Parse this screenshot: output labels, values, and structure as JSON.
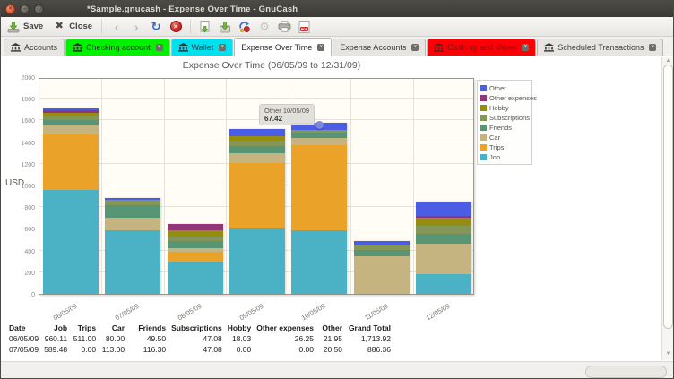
{
  "window": {
    "title": "*Sample.gnucash - Expense Over Time - GnuCash"
  },
  "toolbar": {
    "save_label": "Save",
    "close_label": "Close",
    "icons": [
      "save-icon",
      "close-icon",
      "back-icon",
      "forward-icon",
      "reload-icon",
      "stop-icon",
      "save-report-icon",
      "export-icon",
      "options-icon",
      "settings-icon",
      "print-icon",
      "export-pdf-icon"
    ]
  },
  "tabs": [
    {
      "label": "Accounts",
      "icon": "bank",
      "closable": false,
      "active": false
    },
    {
      "label": "Checking account",
      "icon": "bank",
      "highlight": "#00f000",
      "text_color": "#20381c",
      "closable": true,
      "active": false
    },
    {
      "label": "Wallet",
      "icon": "bank",
      "highlight": "#00e0ee",
      "text_color": "#1c3a40",
      "closable": true,
      "active": false
    },
    {
      "label": "Expense Over Time",
      "icon": null,
      "closable": true,
      "active": true
    },
    {
      "label": "Expense Accounts",
      "icon": null,
      "closable": true,
      "active": false
    },
    {
      "label": "Clothing and shoes",
      "icon": "bank",
      "highlight": "#fb0007",
      "text_color": "#7a1410",
      "closable": true,
      "active": false
    },
    {
      "label": "Scheduled Transactions",
      "icon": "bank",
      "closable": true,
      "active": false
    }
  ],
  "chart_data": {
    "type": "bar",
    "stacked": true,
    "title": "Expense Over Time (06/05/09 to 12/31/09)",
    "ylabel": "USD",
    "xlabel": "",
    "ylim": [
      0,
      2000
    ],
    "ytick_step": 200,
    "grid": true,
    "legend_position": "right",
    "categories": [
      "06/05/09",
      "07/05/09",
      "08/05/09",
      "09/05/09",
      "10/05/09",
      "11/05/09",
      "12/05/09"
    ],
    "series": [
      {
        "name": "Job",
        "color": "#4bb2c5",
        "values": [
          960.11,
          589.48,
          300,
          600,
          585,
          0,
          185
        ]
      },
      {
        "name": "Trips",
        "color": "#eaa228",
        "values": [
          511.0,
          0.0,
          85,
          605,
          790,
          0,
          0
        ]
      },
      {
        "name": "Car",
        "color": "#c5b47f",
        "values": [
          80.0,
          113.0,
          40,
          95,
          60,
          350,
          275
        ]
      },
      {
        "name": "Friends",
        "color": "#579575",
        "values": [
          49.5,
          116.3,
          65,
          65,
          55,
          55,
          90
        ]
      },
      {
        "name": "Subscriptions",
        "color": "#839557",
        "values": [
          47.08,
          47.08,
          38,
          47,
          25,
          45,
          75
        ]
      },
      {
        "name": "Hobby",
        "color": "#958c12",
        "values": [
          18.03,
          0.0,
          55,
          45,
          0,
          0,
          75
        ]
      },
      {
        "name": "Other expenses",
        "color": "#953579",
        "values": [
          26.25,
          0.0,
          60,
          0,
          0,
          0,
          20
        ]
      },
      {
        "name": "Other",
        "color": "#4b5de4",
        "values": [
          21.95,
          20.5,
          0,
          65,
          67.42,
          40,
          130
        ]
      }
    ],
    "legend_order_top_to_bottom": [
      "Other",
      "Other expenses",
      "Hobby",
      "Subscriptions",
      "Friends",
      "Car",
      "Trips",
      "Job"
    ]
  },
  "tooltip": {
    "line1": "Other 10/05/09",
    "line2": "67.42",
    "category_index": 4
  },
  "table": {
    "headers": [
      "Date",
      "Job",
      "Trips",
      "Car",
      "Friends",
      "Subscriptions",
      "Hobby",
      "Other expenses",
      "Other",
      "Grand Total"
    ],
    "rows": [
      [
        "06/05/09",
        "960.11",
        "511.00",
        "80.00",
        "49.50",
        "47.08",
        "18.03",
        "26.25",
        "21.95",
        "1,713.92"
      ],
      [
        "07/05/09",
        "589.48",
        "0.00",
        "113.00",
        "116.30",
        "47.08",
        "0.00",
        "0.00",
        "20.50",
        "886.36"
      ]
    ]
  }
}
